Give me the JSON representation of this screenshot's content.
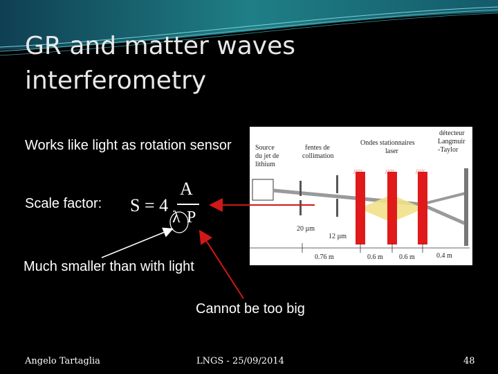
{
  "slide": {
    "title_line1": "GR and matter waves",
    "title_line2": "interferometry",
    "bullet1": "Works like light as rotation sensor",
    "bullet2": "Scale factor:",
    "note_smaller": "Much smaller than with light",
    "note_big": "Cannot be too big"
  },
  "formula": {
    "lhs": "S = 4",
    "numerator": "A",
    "lambda": "λ",
    "p": "P"
  },
  "figure": {
    "label_source": [
      "Source",
      "du jet de",
      "lithium"
    ],
    "label_slits": [
      "fentes de",
      "collimation"
    ],
    "label_waves": [
      "Ondes stationnaires",
      "laser"
    ],
    "label_detector": [
      "détecteur",
      "Langmuir",
      "-Taylor"
    ],
    "label_20um": "20 µm",
    "label_12um": "12 µm",
    "dist_1": "0.76 m",
    "dist_2": "0.6 m",
    "dist_3": "0.6 m",
    "dist_4": "0.4 m"
  },
  "footer": {
    "author": "Angelo Tartaglia",
    "venue": "LNGS - 25/09/2014",
    "page": "48"
  },
  "colors": {
    "background": "#000000",
    "header_teal": "#1f7f86",
    "arrow_red": "#d01818",
    "laser_red": "#e01a1a",
    "beam_yellow": "#f2e08a"
  }
}
